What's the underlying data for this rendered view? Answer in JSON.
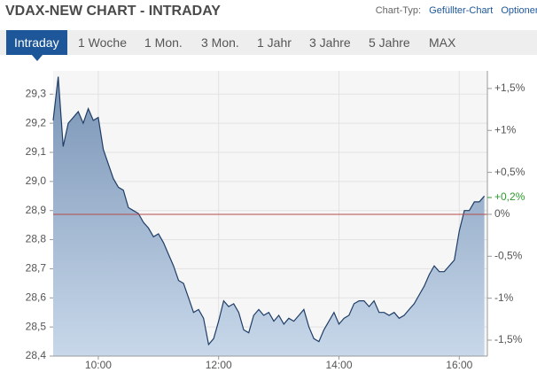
{
  "header": {
    "chart_type_label": "Chart-Typ:",
    "chart_type": "Gefüllter-Chart",
    "options": "Optionen"
  },
  "tabs": [
    "Intraday",
    "1 Woche",
    "1 Mon.",
    "3 Mon.",
    "1 Jahr",
    "3 Jahre",
    "5 Jahre",
    "MAX"
  ],
  "active_tab": 0,
  "chart_data": {
    "type": "area",
    "title": "VDAX-NEW CHART - INTRADAY",
    "x": [
      555,
      560,
      565,
      570,
      575,
      580,
      585,
      590,
      595,
      600,
      605,
      610,
      615,
      620,
      625,
      630,
      635,
      640,
      645,
      650,
      655,
      660,
      665,
      670,
      675,
      680,
      685,
      690,
      695,
      700,
      705,
      710,
      715,
      720,
      725,
      730,
      735,
      740,
      745,
      750,
      755,
      760,
      765,
      770,
      775,
      780,
      785,
      790,
      795,
      800,
      805,
      810,
      815,
      820,
      825,
      830,
      835,
      840,
      845,
      850,
      855,
      860,
      865,
      870,
      875,
      880,
      885,
      890,
      895,
      900,
      905,
      910,
      915,
      920,
      925,
      930,
      935,
      940,
      945,
      950,
      955,
      960,
      965,
      970,
      975,
      980,
      985
    ],
    "values": [
      29.21,
      29.36,
      29.12,
      29.2,
      29.22,
      29.24,
      29.2,
      29.25,
      29.21,
      29.22,
      29.11,
      29.06,
      29.01,
      28.98,
      28.97,
      28.91,
      28.9,
      28.89,
      28.86,
      28.84,
      28.81,
      28.82,
      28.79,
      28.75,
      28.71,
      28.66,
      28.65,
      28.6,
      28.55,
      28.56,
      28.53,
      28.44,
      28.46,
      28.52,
      28.59,
      28.57,
      28.58,
      28.55,
      28.49,
      28.48,
      28.54,
      28.56,
      28.54,
      28.55,
      28.52,
      28.54,
      28.51,
      28.53,
      28.52,
      28.54,
      28.56,
      28.5,
      28.46,
      28.45,
      28.49,
      28.52,
      28.55,
      28.51,
      28.53,
      28.54,
      28.58,
      28.59,
      28.59,
      28.57,
      28.59,
      28.55,
      28.55,
      28.54,
      28.55,
      28.53,
      28.54,
      28.56,
      28.58,
      28.61,
      28.64,
      28.68,
      28.71,
      28.69,
      28.69,
      28.71,
      28.73,
      28.83,
      28.9,
      28.9,
      28.93,
      28.93,
      28.95
    ],
    "color": "#1f3d66",
    "area_colors": [
      "#7994b6",
      "#c8d8ea"
    ],
    "xlim": [
      555,
      988
    ],
    "xticks": [
      {
        "value": 600,
        "label": "10:00"
      },
      {
        "value": 720,
        "label": "12:00"
      },
      {
        "value": 840,
        "label": "14:00"
      },
      {
        "value": 960,
        "label": "16:00"
      }
    ],
    "ylim": [
      28.4,
      29.38
    ],
    "yticks": [
      {
        "value": 28.4,
        "label": "28,4"
      },
      {
        "value": 28.5,
        "label": "28,5"
      },
      {
        "value": 28.6,
        "label": "28,6"
      },
      {
        "value": 28.7,
        "label": "28,7"
      },
      {
        "value": 28.8,
        "label": "28,8"
      },
      {
        "value": 28.9,
        "label": "28,9"
      },
      {
        "value": 29.0,
        "label": "29,0"
      },
      {
        "value": 29.1,
        "label": "29,1"
      },
      {
        "value": 29.2,
        "label": "29,2"
      },
      {
        "value": 29.3,
        "label": "29,3"
      }
    ],
    "y2lim": [
      -1.69,
      1.71
    ],
    "y2ticks": [
      {
        "value": -1.5,
        "label": "-1,5%"
      },
      {
        "value": -1,
        "label": "-1%"
      },
      {
        "value": -0.5,
        "label": "-0,5%"
      },
      {
        "value": 0,
        "label": "0%"
      },
      {
        "value": 0.5,
        "label": "+0,5%"
      },
      {
        "value": 1,
        "label": "+1%"
      },
      {
        "value": 1.5,
        "label": "+1,5%"
      }
    ],
    "current_value": {
      "value": 0.2,
      "label": "+0,2%",
      "color": "#2e9a2e"
    },
    "reference_line": {
      "axis": "y2",
      "value": 0,
      "color": "#b54a4a"
    },
    "grid": true
  }
}
